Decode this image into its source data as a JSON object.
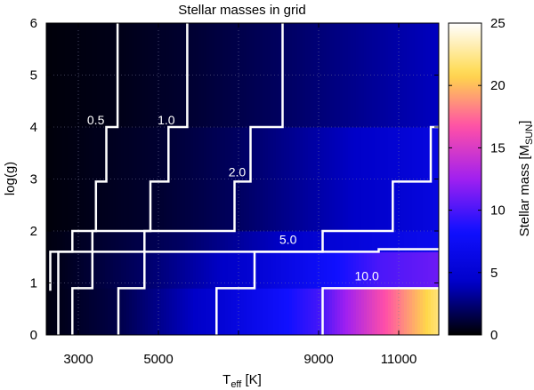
{
  "chart_data": {
    "type": "heatmap",
    "title": "Stellar masses in grid",
    "xlabel": {
      "main": "T",
      "sub": "eff",
      "rest": " [K]"
    },
    "ylabel": "log(g)",
    "xlim": [
      2200,
      12000
    ],
    "ylim": [
      0,
      6
    ],
    "xticks": [
      3000,
      5000,
      7000,
      9000,
      11000
    ],
    "xtick_labels": [
      "3000",
      "5000",
      "9000",
      "11000"
    ],
    "xtick_label_values": [
      3000,
      5000,
      9000,
      11000
    ],
    "yticks": [
      0,
      1,
      2,
      3,
      4,
      5,
      6
    ],
    "ytick_labels": [
      "0",
      "1",
      "2",
      "3",
      "4",
      "5",
      "6"
    ],
    "grid": true,
    "colorbar": {
      "label": {
        "main": "Stellar mass [M",
        "sub": "SUN",
        "rest": "]"
      },
      "range": [
        0,
        25
      ],
      "ticks": [
        0,
        5,
        10,
        15,
        20,
        25
      ],
      "tick_labels": [
        "0",
        "5",
        "10",
        "15",
        "20",
        "25"
      ],
      "colormap": [
        "#000000",
        "#0000c8",
        "#1010ff",
        "#a020f0",
        "#ff4fa8",
        "#ffd84a",
        "#ffffff"
      ]
    },
    "contours": [
      {
        "level": 0.5,
        "label": "0.5",
        "label_at": [
          3220,
          4.05
        ],
        "points": [
          [
            2300,
            0.85
          ],
          [
            2300,
            1.6
          ],
          [
            2850,
            1.6
          ],
          [
            2850,
            2.0
          ],
          [
            3440,
            2.0
          ],
          [
            3440,
            2.95
          ],
          [
            3700,
            2.95
          ],
          [
            3700,
            4.0
          ],
          [
            3980,
            4.0
          ],
          [
            3980,
            6.0
          ]
        ]
      },
      {
        "level": 1.0,
        "label": "1.0",
        "label_at": [
          4980,
          4.05
        ],
        "points": [
          [
            2500,
            0
          ],
          [
            2500,
            1.6
          ],
          [
            3350,
            1.6
          ],
          [
            3350,
            2.0
          ],
          [
            4800,
            2.0
          ],
          [
            4800,
            2.95
          ],
          [
            5250,
            2.95
          ],
          [
            5250,
            4.0
          ],
          [
            5720,
            4.0
          ],
          [
            5720,
            6.0
          ]
        ]
      },
      {
        "level": 2.0,
        "label": "2.0",
        "label_at": [
          6750,
          3.05
        ],
        "points": [
          [
            2850,
            0
          ],
          [
            2850,
            0.9
          ],
          [
            3350,
            0.9
          ],
          [
            3350,
            1.6
          ],
          [
            4650,
            1.6
          ],
          [
            4650,
            2.0
          ],
          [
            5700,
            2.0
          ],
          [
            5700,
            2.0
          ],
          [
            6900,
            2.0
          ],
          [
            6900,
            2.95
          ],
          [
            7300,
            2.95
          ],
          [
            7300,
            4.0
          ],
          [
            8100,
            4.0
          ],
          [
            8100,
            6.0
          ]
        ]
      },
      {
        "level": 5.0,
        "label": "5.0",
        "label_at": [
          8020,
          1.75
        ],
        "points": [
          [
            4000,
            0
          ],
          [
            4000,
            0.9
          ],
          [
            4650,
            0.9
          ],
          [
            4650,
            1.6
          ],
          [
            7400,
            1.6
          ],
          [
            7400,
            1.6
          ],
          [
            9100,
            1.6
          ],
          [
            9100,
            2.0
          ],
          [
            10850,
            2.0
          ],
          [
            10850,
            2.95
          ],
          [
            11800,
            2.95
          ],
          [
            11800,
            4.0
          ],
          [
            12000,
            4.0
          ]
        ]
      },
      {
        "level": 10.0,
        "label": "10.0",
        "label_at": [
          9900,
          1.05
        ],
        "points": [
          [
            6450,
            0
          ],
          [
            6450,
            0.9
          ],
          [
            7400,
            0.9
          ],
          [
            7400,
            1.6
          ],
          [
            8500,
            1.6
          ],
          [
            8500,
            1.6
          ],
          [
            10500,
            1.6
          ],
          [
            10500,
            1.65
          ],
          [
            12000,
            1.65
          ]
        ]
      },
      {
        "level": 10.0,
        "label": "",
        "label_at": null,
        "points": [
          [
            9100,
            0
          ],
          [
            9100,
            0.9
          ],
          [
            12000,
            0.9
          ]
        ]
      }
    ],
    "surface": {
      "bands": [
        {
          "y": [
            0,
            0.9
          ],
          "mass_at_x": [
            [
              2200,
              0.3
            ],
            [
              4000,
              1.5
            ],
            [
              6500,
              5
            ],
            [
              9100,
              10
            ],
            [
              10500,
              16
            ],
            [
              12000,
              22
            ]
          ]
        },
        {
          "y": [
            0.9,
            1.6
          ],
          "mass_at_x": [
            [
              2200,
              0.3
            ],
            [
              4500,
              2
            ],
            [
              7400,
              5
            ],
            [
              10500,
              10
            ],
            [
              12000,
              11
            ]
          ]
        },
        {
          "y": [
            1.6,
            2.0
          ],
          "mass_at_x": [
            [
              2200,
              0.3
            ],
            [
              5500,
              2
            ],
            [
              9100,
              5
            ],
            [
              12000,
              7
            ]
          ]
        },
        {
          "y": [
            2.0,
            4.0
          ],
          "mass_at_x": [
            [
              2200,
              0.2
            ],
            [
              5000,
              1
            ],
            [
              7000,
              2
            ],
            [
              11000,
              5
            ],
            [
              12000,
              6
            ]
          ]
        },
        {
          "y": [
            4.0,
            6.0
          ],
          "mass_at_x": [
            [
              2200,
              0.2
            ],
            [
              4000,
              0.5
            ],
            [
              5700,
              1
            ],
            [
              8100,
              2
            ],
            [
              12000,
              4
            ]
          ]
        }
      ]
    }
  }
}
